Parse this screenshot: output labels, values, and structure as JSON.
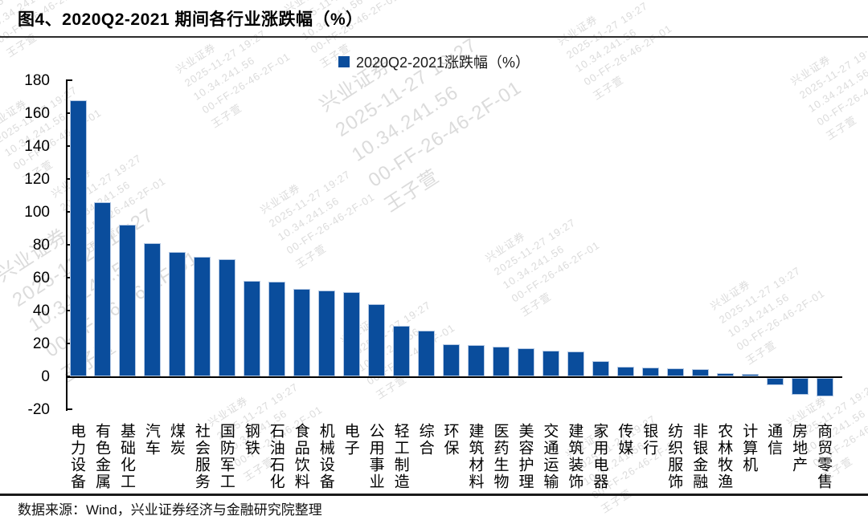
{
  "title": "图4、2020Q2-2021 期间各行业涨跌幅（%）",
  "legend": {
    "label": "2020Q2-2021涨跌幅（%）",
    "swatch_color": "#0A4D9C"
  },
  "source_note": "数据来源：Wind，兴业证券经济与金融研究院整理",
  "colors": {
    "bar_fill": "#0A4D9C",
    "bar_border": "#B5C9E4",
    "axis": "#000000",
    "watermark": "#bfbfbf"
  },
  "watermark_lines": [
    "兴业证券",
    "2025-11-27 19:27",
    "10.34.241.56",
    "00-FF-26-46-2F-01",
    "王子萱"
  ],
  "y_axis_ticks": [
    180,
    160,
    140,
    120,
    100,
    80,
    60,
    40,
    20,
    0,
    -20
  ],
  "chart_data": {
    "type": "bar",
    "title": "图4、2020Q2-2021 期间各行业涨跌幅（%）",
    "legend": [
      "2020Q2-2021涨跌幅（%）"
    ],
    "legend_position": "top-center",
    "xlabel": "",
    "ylabel": "",
    "ylim": [
      -20,
      180
    ],
    "ytick_step": 20,
    "grid": false,
    "categories": [
      "电力设备",
      "有色金属",
      "基础化工",
      "汽车",
      "煤炭",
      "社会服务",
      "国防军工",
      "钢铁",
      "石油石化",
      "食品饮料",
      "机械设备",
      "电子",
      "公用事业",
      "轻工制造",
      "综合",
      "环保",
      "建筑材料",
      "医药生物",
      "美容护理",
      "交通运输",
      "建筑装饰",
      "家用电器",
      "传媒",
      "银行",
      "纺织服饰",
      "非银金融",
      "农林牧渔",
      "计算机",
      "通信",
      "房地产",
      "商贸零售"
    ],
    "values": [
      168,
      106,
      92,
      81,
      75.5,
      72.5,
      71,
      58,
      57.5,
      53,
      52,
      51,
      44,
      30.5,
      28,
      19.5,
      19,
      18,
      17,
      15.5,
      15,
      9.5,
      6,
      5.5,
      5,
      4.5,
      2,
      1.5,
      -4.5,
      -10,
      -11
    ]
  }
}
